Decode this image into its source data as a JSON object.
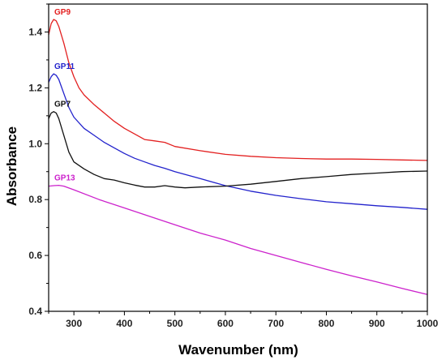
{
  "chart_data": {
    "type": "line",
    "xlabel": "Wavenumber (nm)",
    "ylabel": "Absorbance",
    "xlim": [
      250,
      1000
    ],
    "ylim": [
      0.4,
      1.5
    ],
    "xticks": [
      300,
      400,
      500,
      600,
      700,
      800,
      900,
      1000
    ],
    "yticks": [
      0.4,
      0.6,
      0.8,
      1.0,
      1.2,
      1.4
    ],
    "ytick_labels": [
      "0.4",
      "0.6",
      "0.8",
      "1.0",
      "1.2",
      "1.4"
    ],
    "grid": false,
    "series": [
      {
        "name": "GP9",
        "color": "#e32020",
        "points": [
          [
            250,
            1.39
          ],
          [
            255,
            1.43
          ],
          [
            260,
            1.445
          ],
          [
            265,
            1.44
          ],
          [
            270,
            1.42
          ],
          [
            280,
            1.36
          ],
          [
            290,
            1.29
          ],
          [
            300,
            1.24
          ],
          [
            310,
            1.2
          ],
          [
            320,
            1.175
          ],
          [
            340,
            1.14
          ],
          [
            360,
            1.11
          ],
          [
            380,
            1.08
          ],
          [
            400,
            1.055
          ],
          [
            420,
            1.035
          ],
          [
            440,
            1.015
          ],
          [
            460,
            1.01
          ],
          [
            480,
            1.005
          ],
          [
            500,
            0.99
          ],
          [
            550,
            0.975
          ],
          [
            600,
            0.962
          ],
          [
            650,
            0.955
          ],
          [
            700,
            0.95
          ],
          [
            750,
            0.947
          ],
          [
            800,
            0.945
          ],
          [
            850,
            0.945
          ],
          [
            900,
            0.944
          ],
          [
            950,
            0.942
          ],
          [
            1000,
            0.94
          ]
        ]
      },
      {
        "name": "GP11",
        "color": "#2222cc",
        "points": [
          [
            250,
            1.22
          ],
          [
            255,
            1.24
          ],
          [
            260,
            1.25
          ],
          [
            265,
            1.245
          ],
          [
            270,
            1.23
          ],
          [
            280,
            1.18
          ],
          [
            290,
            1.13
          ],
          [
            300,
            1.095
          ],
          [
            320,
            1.055
          ],
          [
            340,
            1.03
          ],
          [
            360,
            1.005
          ],
          [
            380,
            0.985
          ],
          [
            400,
            0.965
          ],
          [
            420,
            0.948
          ],
          [
            440,
            0.935
          ],
          [
            460,
            0.922
          ],
          [
            480,
            0.912
          ],
          [
            500,
            0.9
          ],
          [
            550,
            0.875
          ],
          [
            600,
            0.85
          ],
          [
            650,
            0.83
          ],
          [
            700,
            0.815
          ],
          [
            750,
            0.803
          ],
          [
            800,
            0.792
          ],
          [
            850,
            0.785
          ],
          [
            900,
            0.778
          ],
          [
            950,
            0.772
          ],
          [
            1000,
            0.765
          ]
        ]
      },
      {
        "name": "GP7",
        "color": "#111111",
        "points": [
          [
            250,
            1.09
          ],
          [
            255,
            1.11
          ],
          [
            260,
            1.115
          ],
          [
            265,
            1.11
          ],
          [
            270,
            1.09
          ],
          [
            280,
            1.03
          ],
          [
            290,
            0.97
          ],
          [
            300,
            0.935
          ],
          [
            320,
            0.91
          ],
          [
            340,
            0.89
          ],
          [
            360,
            0.875
          ],
          [
            380,
            0.87
          ],
          [
            400,
            0.86
          ],
          [
            420,
            0.852
          ],
          [
            440,
            0.845
          ],
          [
            460,
            0.845
          ],
          [
            480,
            0.85
          ],
          [
            500,
            0.845
          ],
          [
            520,
            0.842
          ],
          [
            550,
            0.845
          ],
          [
            600,
            0.848
          ],
          [
            650,
            0.855
          ],
          [
            700,
            0.865
          ],
          [
            750,
            0.875
          ],
          [
            800,
            0.882
          ],
          [
            850,
            0.89
          ],
          [
            900,
            0.895
          ],
          [
            950,
            0.9
          ],
          [
            1000,
            0.902
          ]
        ]
      },
      {
        "name": "GP13",
        "color": "#cc22cc",
        "points": [
          [
            250,
            0.848
          ],
          [
            260,
            0.85
          ],
          [
            270,
            0.851
          ],
          [
            280,
            0.848
          ],
          [
            300,
            0.835
          ],
          [
            350,
            0.8
          ],
          [
            400,
            0.77
          ],
          [
            450,
            0.74
          ],
          [
            500,
            0.71
          ],
          [
            550,
            0.68
          ],
          [
            600,
            0.655
          ],
          [
            650,
            0.625
          ],
          [
            700,
            0.6
          ],
          [
            750,
            0.575
          ],
          [
            800,
            0.55
          ],
          [
            850,
            0.527
          ],
          [
            900,
            0.505
          ],
          [
            950,
            0.482
          ],
          [
            1000,
            0.46
          ]
        ]
      }
    ]
  }
}
